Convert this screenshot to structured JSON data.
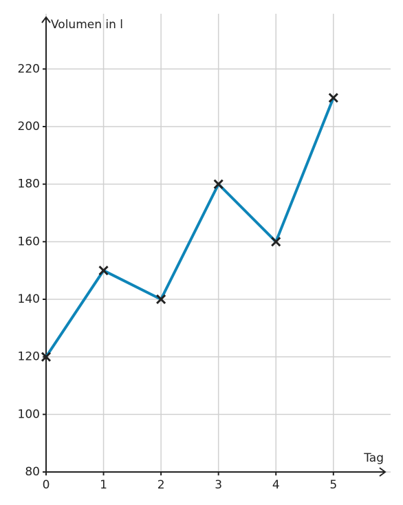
{
  "chart_data": {
    "type": "line",
    "x_label": "Tag",
    "y_label": "Volumen in l",
    "x": [
      0,
      1,
      2,
      3,
      4,
      5
    ],
    "series": [
      {
        "color": "#0e85b8",
        "values": [
          120,
          150,
          140,
          180,
          160,
          210
        ]
      }
    ],
    "xlim": [
      0,
      5.9
    ],
    "xticks": [
      0,
      1,
      2,
      3,
      4,
      5
    ],
    "ylim": [
      80,
      238
    ],
    "yticks": [
      80,
      100,
      120,
      140,
      160,
      180,
      200,
      220
    ],
    "grid": true,
    "marker_color": "#222222"
  }
}
